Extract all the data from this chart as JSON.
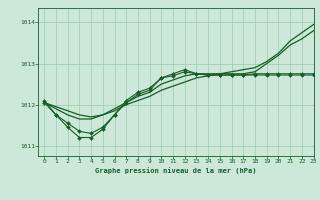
{
  "bg_color": "#cce8d8",
  "plot_bg_color": "#cce8d8",
  "grid_color": "#99ccaa",
  "line_color": "#1a5c2a",
  "title": "Graphe pression niveau de la mer (hPa)",
  "ylim": [
    1010.75,
    1014.35
  ],
  "xlim": [
    -0.5,
    23
  ],
  "yticks": [
    1011,
    1012,
    1013,
    1014
  ],
  "xticks": [
    0,
    1,
    2,
    3,
    4,
    5,
    6,
    7,
    8,
    9,
    10,
    11,
    12,
    13,
    14,
    15,
    16,
    17,
    18,
    19,
    20,
    21,
    22,
    23
  ],
  "series_smooth": {
    "x": [
      0,
      1,
      2,
      3,
      4,
      5,
      6,
      7,
      8,
      9,
      10,
      11,
      12,
      13,
      14,
      15,
      16,
      17,
      18,
      19,
      20,
      21,
      22,
      23
    ],
    "y": [
      1012.05,
      1011.95,
      1011.85,
      1011.75,
      1011.7,
      1011.75,
      1011.85,
      1012.0,
      1012.1,
      1012.2,
      1012.35,
      1012.45,
      1012.55,
      1012.65,
      1012.7,
      1012.75,
      1012.8,
      1012.85,
      1012.9,
      1013.05,
      1013.25,
      1013.55,
      1013.75,
      1013.95
    ]
  },
  "series_upper": {
    "x": [
      0,
      1,
      2,
      3,
      4,
      5,
      6,
      7,
      8,
      9,
      10,
      11,
      12,
      13,
      14,
      15,
      16,
      17,
      18,
      19,
      20,
      21,
      22,
      23
    ],
    "y": [
      1012.05,
      1011.9,
      1011.75,
      1011.65,
      1011.65,
      1011.75,
      1011.9,
      1012.05,
      1012.2,
      1012.3,
      1012.5,
      1012.6,
      1012.7,
      1012.75,
      1012.75,
      1012.75,
      1012.75,
      1012.75,
      1012.8,
      1013.0,
      1013.2,
      1013.45,
      1013.6,
      1013.8
    ]
  },
  "series_marked1": {
    "x": [
      0,
      1,
      2,
      3,
      4,
      5,
      6,
      7,
      8,
      9,
      10,
      11,
      12,
      13,
      14,
      15,
      16,
      17,
      18,
      19,
      20,
      21,
      22,
      23
    ],
    "y": [
      1012.05,
      1011.75,
      1011.55,
      1011.35,
      1011.3,
      1011.45,
      1011.75,
      1012.05,
      1012.25,
      1012.35,
      1012.65,
      1012.7,
      1012.8,
      1012.75,
      1012.72,
      1012.72,
      1012.72,
      1012.72,
      1012.75,
      1012.75,
      1012.75,
      1012.75,
      1012.75,
      1012.75
    ]
  },
  "series_marked2": {
    "x": [
      0,
      1,
      2,
      3,
      4,
      5,
      6,
      7,
      8,
      9,
      10,
      11,
      12,
      13,
      14,
      15,
      16,
      17,
      18,
      19,
      20,
      21,
      22,
      23
    ],
    "y": [
      1012.1,
      1011.75,
      1011.45,
      1011.2,
      1011.2,
      1011.4,
      1011.75,
      1012.1,
      1012.3,
      1012.4,
      1012.65,
      1012.75,
      1012.85,
      1012.75,
      1012.72,
      1012.72,
      1012.72,
      1012.72,
      1012.72,
      1012.72,
      1012.72,
      1012.72,
      1012.72,
      1012.72
    ]
  }
}
